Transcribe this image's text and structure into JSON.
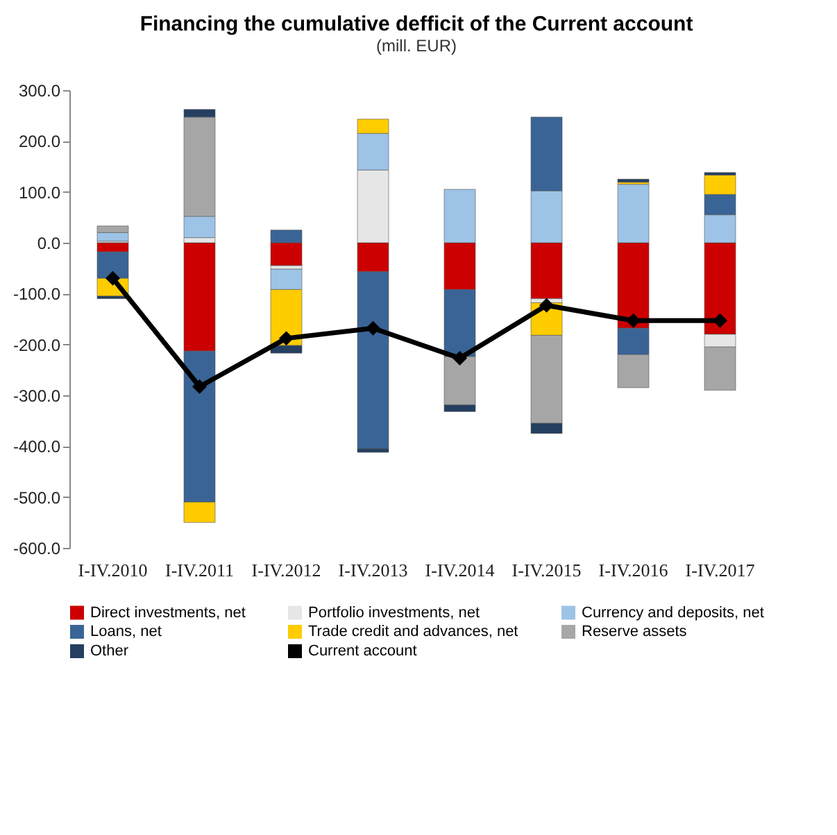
{
  "chart_data": {
    "type": "bar",
    "title": "Financing the cumulative defficit of the Current account",
    "subtitle": "(mill. EUR)",
    "categories": [
      "I-IV.2010",
      "I-IV.2011",
      "I-IV.2012",
      "I-IV.2013",
      "I-IV.2014",
      "I-IV.2015",
      "I-IV.2016",
      "I-IV.2017"
    ],
    "stacked": true,
    "grid": false,
    "legend": "bottom",
    "marker": "diamond",
    "line_style": "solid",
    "ylim": [
      -600,
      300
    ],
    "yticks": [
      {
        "value": -600,
        "label": "-600.0"
      },
      {
        "value": -500,
        "label": "-500.0"
      },
      {
        "value": -400,
        "label": "-400.0"
      },
      {
        "value": -300,
        "label": "-300.0"
      },
      {
        "value": -200,
        "label": "-200.0"
      },
      {
        "value": -100,
        "label": "-100.0"
      },
      {
        "value": 0,
        "label": "0.0"
      },
      {
        "value": 100,
        "label": "100.0"
      },
      {
        "value": 200,
        "label": "200.0"
      },
      {
        "value": 300,
        "label": "300.0"
      }
    ],
    "series": [
      {
        "name": "Direct investments, net",
        "color": "#cc0000",
        "values": [
          -18,
          -213,
          -45,
          -57,
          -92,
          -110,
          -168,
          -180
        ]
      },
      {
        "name": "Portfolio investments, net",
        "color": "#e6e6e6",
        "values": [
          3,
          10,
          -7,
          143,
          null,
          -8,
          null,
          -25
        ]
      },
      {
        "name": "Currency and deposits, net",
        "color": "#9dc3e6",
        "values": [
          17,
          42,
          -40,
          72,
          105,
          102,
          115,
          55
        ]
      },
      {
        "name": "Loans, net",
        "color": "#3a6496",
        "values": [
          -52,
          -297,
          25,
          -348,
          -132,
          145,
          -52,
          40
        ]
      },
      {
        "name": "Trade credit and advances, net",
        "color": "#ffcc00",
        "values": [
          -35,
          -40,
          -110,
          28,
          null,
          -64,
          4,
          38
        ]
      },
      {
        "name": "Reserve assets",
        "color": "#a6a6a6",
        "values": [
          13,
          195,
          null,
          null,
          -95,
          -173,
          -65,
          -85
        ]
      },
      {
        "name": "Other",
        "color": "#243f60",
        "values": [
          -5,
          15,
          -15,
          -7,
          -13,
          -20,
          6,
          5
        ]
      },
      {
        "name": "Current account",
        "color": "#000000",
        "type": "line",
        "values": [
          -70,
          -283,
          -188,
          -168,
          -227,
          -123,
          -153,
          -153
        ]
      }
    ]
  }
}
